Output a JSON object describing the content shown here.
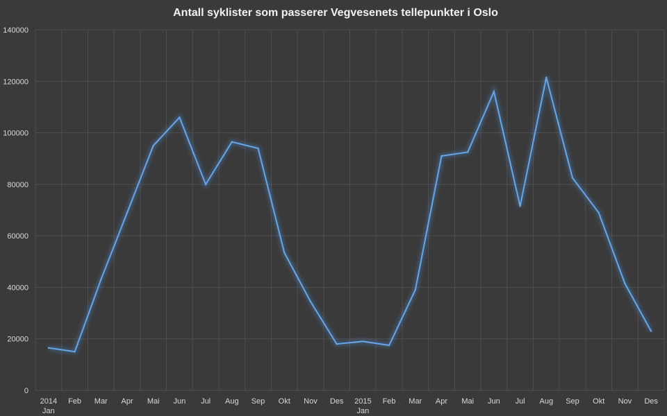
{
  "chart_data": {
    "type": "line",
    "title": "Antall syklister som passerer Vegvesenets tellepunkter i Oslo",
    "xlabel": "",
    "ylabel": "",
    "ylim": [
      0,
      140000
    ],
    "yticks": [
      "0",
      "20000",
      "40000",
      "60000",
      "80000",
      "100000",
      "120000",
      "140000"
    ],
    "grid": true,
    "legend": "none",
    "categories": [
      {
        "label": "2014",
        "sublabel": "Jan"
      },
      {
        "label": "Feb",
        "sublabel": ""
      },
      {
        "label": "Mar",
        "sublabel": ""
      },
      {
        "label": "Apr",
        "sublabel": ""
      },
      {
        "label": "Mai",
        "sublabel": ""
      },
      {
        "label": "Jun",
        "sublabel": ""
      },
      {
        "label": "Jul",
        "sublabel": ""
      },
      {
        "label": "Aug",
        "sublabel": ""
      },
      {
        "label": "Sep",
        "sublabel": ""
      },
      {
        "label": "Okt",
        "sublabel": ""
      },
      {
        "label": "Nov",
        "sublabel": ""
      },
      {
        "label": "Des",
        "sublabel": ""
      },
      {
        "label": "2015",
        "sublabel": "Jan"
      },
      {
        "label": "Feb",
        "sublabel": ""
      },
      {
        "label": "Mar",
        "sublabel": ""
      },
      {
        "label": "Apr",
        "sublabel": ""
      },
      {
        "label": "Mai",
        "sublabel": ""
      },
      {
        "label": "Jun",
        "sublabel": ""
      },
      {
        "label": "Jul",
        "sublabel": ""
      },
      {
        "label": "Aug",
        "sublabel": ""
      },
      {
        "label": "Sep",
        "sublabel": ""
      },
      {
        "label": "Okt",
        "sublabel": ""
      },
      {
        "label": "Nov",
        "sublabel": ""
      },
      {
        "label": "Des",
        "sublabel": ""
      }
    ],
    "series": [
      {
        "color": "#66a6ea",
        "values": [
          16500,
          15000,
          43000,
          69000,
          95000,
          106000,
          80000,
          96500,
          94000,
          53500,
          34500,
          18000,
          19000,
          17500,
          39000,
          91000,
          92500,
          116000,
          71500,
          121500,
          82500,
          69000,
          41500,
          23000
        ]
      }
    ]
  }
}
